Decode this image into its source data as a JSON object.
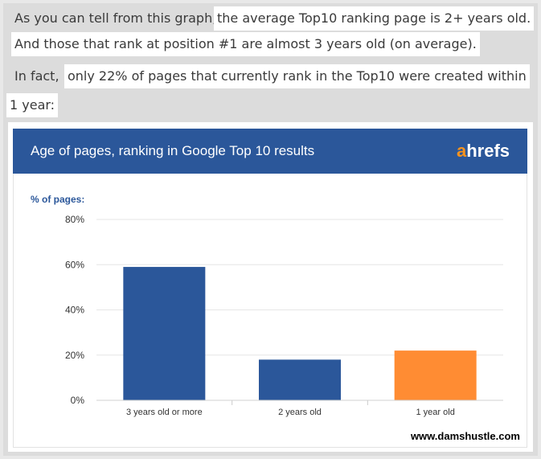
{
  "article": {
    "line1_plain": "As you can tell from this graph,",
    "line1_highlight": "the average Top10 ranking page is 2+ years old.",
    "line2_highlight": "And those that rank at position #1 are almost 3 years old (on average).",
    "line3_plain": "In fact,",
    "line3_highlight": "only 22% of pages that currently rank in the Top10 were created within",
    "line4_highlight": "1 year:"
  },
  "chart_data": {
    "type": "bar",
    "title": "Age of pages, ranking in Google Top 10 results",
    "ylabel": "% of pages:",
    "categories": [
      "3 years old or more",
      "2 years old",
      "1 year old"
    ],
    "values": [
      59,
      18,
      22
    ],
    "bar_colors": [
      "#2b579a",
      "#2b579a",
      "#ff8c33"
    ],
    "ylim": [
      0,
      80
    ],
    "yticks": [
      "0%",
      "20%",
      "40%",
      "60%",
      "80%"
    ],
    "grid": true,
    "brand_prefix": "a",
    "brand_rest": "hrefs",
    "header_color": "#2b579a"
  },
  "watermark": "www.damshustle.com"
}
